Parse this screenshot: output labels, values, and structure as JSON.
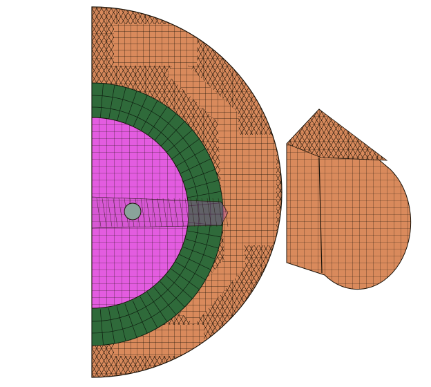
{
  "figure": {
    "description_visible_text": "",
    "colors": {
      "background": "#ffffff",
      "outer_region": "#d98a5c",
      "ring_region": "#2f6a3a",
      "core_region": "#e35ce0",
      "hole_region": "#8aa39a",
      "mesh_line": "#1a1208",
      "side_lobe": "#d98a5c"
    },
    "regions": [
      {
        "id": "outer-semicircle",
        "material": "outer_region"
      },
      {
        "id": "green-ring",
        "material": "ring_region"
      },
      {
        "id": "magenta-core",
        "material": "core_region"
      },
      {
        "id": "center-hole",
        "material": "hole_region"
      },
      {
        "id": "side-lobe",
        "material": "side_lobe"
      }
    ]
  }
}
